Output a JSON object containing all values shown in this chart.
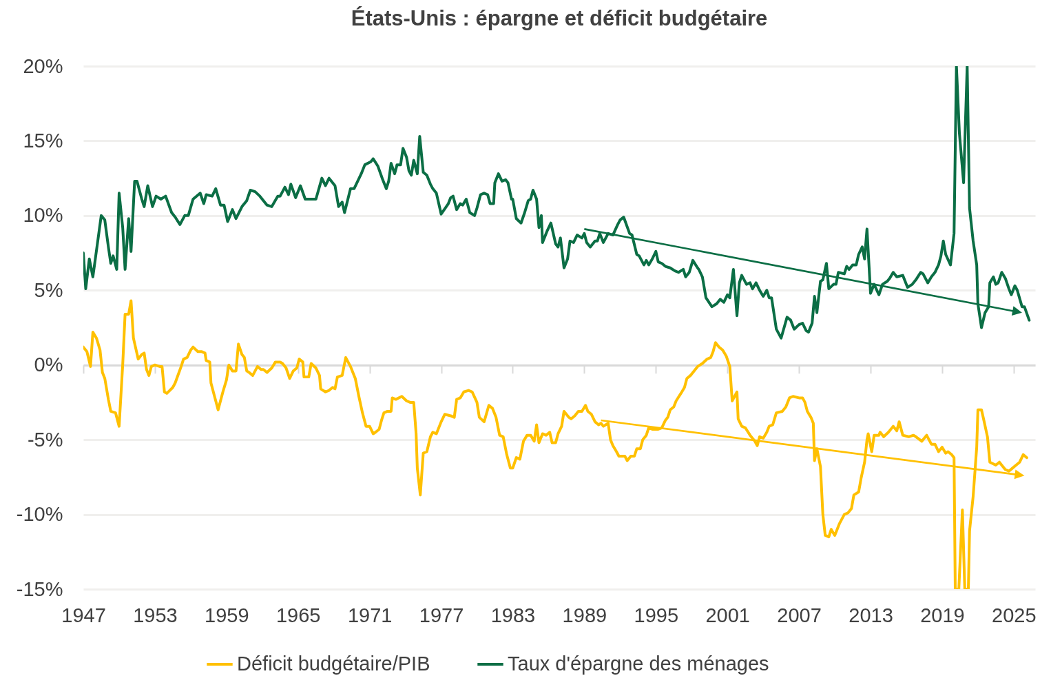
{
  "chart_data": {
    "type": "line",
    "title": "États-Unis : épargne et déficit budgétaire",
    "xlim": [
      1947,
      2026.8
    ],
    "xticks": [
      1947,
      1953,
      1959,
      1965,
      1971,
      1977,
      1983,
      1989,
      1995,
      2001,
      2007,
      2013,
      2019,
      2025
    ],
    "ylim": [
      -15,
      20
    ],
    "yticks": [
      {
        "value": -15,
        "label": "-15%"
      },
      {
        "value": -10,
        "label": "-10%"
      },
      {
        "value": -5,
        "label": "-5%"
      },
      {
        "value": 0,
        "label": "0%"
      },
      {
        "value": 5,
        "label": "5%"
      },
      {
        "value": 10,
        "label": "10%"
      },
      {
        "value": 15,
        "label": "15%"
      },
      {
        "value": 20,
        "label": "20%"
      }
    ],
    "grid": "y",
    "legend": "bottom",
    "series": [
      {
        "name": "Déficit budgétaire/PIB",
        "color": "#ffc000",
        "x": [
          1947.0,
          1947.3,
          1947.6,
          1947.8,
          1948.1,
          1948.4,
          1948.6,
          1948.8,
          1949.1,
          1949.3,
          1949.7,
          1949.8,
          1950.0,
          1950.3,
          1950.5,
          1950.8,
          1951.0,
          1951.2,
          1951.6,
          1951.9,
          1952.1,
          1952.3,
          1952.5,
          1952.7,
          1953.0,
          1953.4,
          1953.6,
          1953.8,
          1954.0,
          1954.5,
          1954.7,
          1955.2,
          1955.4,
          1955.7,
          1956.0,
          1956.2,
          1956.6,
          1956.9,
          1957.2,
          1957.3,
          1957.6,
          1957.7,
          1958.0,
          1958.3,
          1958.7,
          1959.0,
          1959.2,
          1959.5,
          1959.8,
          1960.0,
          1960.3,
          1960.5,
          1960.7,
          1960.9,
          1961.2,
          1961.6,
          1961.9,
          1962.1,
          1962.4,
          1962.8,
          1963.1,
          1963.5,
          1963.7,
          1964.0,
          1964.3,
          1964.6,
          1964.9,
          1965.1,
          1965.4,
          1965.5,
          1965.9,
          1966.1,
          1966.5,
          1966.8,
          1966.9,
          1967.3,
          1967.6,
          1967.9,
          1968.1,
          1968.3,
          1968.7,
          1969.0,
          1969.4,
          1969.8,
          1970.1,
          1970.4,
          1970.7,
          1971.0,
          1971.3,
          1971.5,
          1971.8,
          1972.0,
          1972.2,
          1972.5,
          1972.8,
          1972.9,
          1973.2,
          1973.7,
          1974.1,
          1974.4,
          1974.7,
          1974.9,
          1975.0,
          1975.25,
          1975.5,
          1975.8,
          1976.1,
          1976.3,
          1976.6,
          1977.0,
          1977.3,
          1977.8,
          1978.1,
          1978.3,
          1978.6,
          1978.9,
          1979.3,
          1979.6,
          1980.0,
          1980.2,
          1980.6,
          1981.0,
          1981.3,
          1981.6,
          1981.9,
          1982.2,
          1982.5,
          1982.8,
          1983.0,
          1983.3,
          1983.6,
          1983.9,
          1984.2,
          1984.5,
          1984.8,
          1985.0,
          1985.2,
          1985.5,
          1985.8,
          1986.1,
          1986.3,
          1986.6,
          1986.8,
          1987.1,
          1987.3,
          1987.7,
          1987.9,
          1988.2,
          1988.5,
          1988.8,
          1989.1,
          1989.3,
          1989.6,
          1989.9,
          1990.2,
          1990.4,
          1990.6,
          1991.0,
          1991.2,
          1991.4,
          1991.7,
          1991.9,
          1992.4,
          1992.6,
          1992.9,
          1993.2,
          1993.4,
          1993.7,
          1993.9,
          1994.2,
          1994.4,
          1994.7,
          1995.2,
          1995.5,
          1995.8,
          1996.0,
          1996.2,
          1996.5,
          1996.7,
          1997.1,
          1997.4,
          1997.6,
          1997.9,
          1998.2,
          1998.5,
          1998.9,
          1999.3,
          1999.6,
          1999.8,
          2000.0,
          2000.3,
          2000.6,
          2000.9,
          2001.2,
          2001.4,
          2001.8,
          2001.9,
          2002.2,
          2002.5,
          2002.9,
          2003.3,
          2003.5,
          2003.7,
          2004.0,
          2004.3,
          2004.5,
          2004.8,
          2005.1,
          2005.6,
          2005.9,
          2006.2,
          2006.5,
          2007.0,
          2007.3,
          2007.5,
          2007.7,
          2008.0,
          2008.2,
          2008.3,
          2008.5,
          2008.8,
          2009.0,
          2009.2,
          2009.5,
          2009.7,
          2010.0,
          2010.4,
          2010.8,
          2011.1,
          2011.4,
          2011.6,
          2012.0,
          2012.2,
          2012.5,
          2012.7,
          2012.8,
          2013.1,
          2013.3,
          2013.7,
          2013.8,
          2014.1,
          2014.5,
          2014.9,
          2015.2,
          2015.4,
          2015.7,
          2016.2,
          2016.6,
          2016.8,
          2017.3,
          2017.7,
          2018.1,
          2018.4,
          2018.7,
          2019.0,
          2019.3,
          2019.5,
          2019.8,
          2020.0,
          2020.1,
          2020.4,
          2020.7,
          2020.9,
          2021.2,
          2021.3,
          2021.6,
          2021.9,
          2022.0,
          2022.3,
          2022.5,
          2022.8,
          2023.0,
          2023.5,
          2023.8,
          2024.1,
          2024.3,
          2024.6,
          2024.9,
          2025.2,
          2025.5,
          2025.8,
          2026.1
        ],
        "values": [
          1.2,
          0.9,
          -0.1,
          2.2,
          1.8,
          1.0,
          -0.5,
          -0.9,
          -2.3,
          -3.1,
          -3.2,
          -3.5,
          -4.1,
          0,
          3.4,
          3.4,
          4.3,
          1.8,
          0.4,
          0.7,
          0.8,
          -0.3,
          -0.7,
          -0.1,
          0,
          -0.1,
          -0.1,
          -1.8,
          -1.9,
          -1.5,
          -1.2,
          -0.1,
          0.4,
          0.5,
          1.0,
          1.2,
          0.9,
          0.9,
          0.8,
          0.3,
          0.2,
          -1.2,
          -2.1,
          -3.0,
          -1.8,
          -1.0,
          0,
          -0.4,
          -0.4,
          1.4,
          0.7,
          0.5,
          -0.4,
          -0.5,
          -0.7,
          -0.1,
          -0.3,
          -0.3,
          -0.5,
          -0.2,
          0.2,
          0.2,
          0.1,
          -0.2,
          -0.9,
          -0.4,
          -0.2,
          0.4,
          0.2,
          -0.8,
          -0.8,
          0.1,
          -0.2,
          -0.7,
          -1.6,
          -1.8,
          -1.7,
          -1.5,
          -1.6,
          -0.8,
          -0.7,
          0.5,
          -0.1,
          -0.9,
          -2.1,
          -3.2,
          -4.1,
          -4.1,
          -4.6,
          -4.5,
          -4.3,
          -3.7,
          -3.2,
          -3.1,
          -3.1,
          -2.2,
          -2.3,
          -2.1,
          -2.4,
          -2.5,
          -2.5,
          -4.6,
          -6.9,
          -8.7,
          -5.9,
          -5.8,
          -4.8,
          -4.5,
          -4.6,
          -3.8,
          -3.3,
          -3.4,
          -3.5,
          -2.3,
          -2.2,
          -1.8,
          -1.7,
          -1.8,
          -2.5,
          -3.5,
          -3.8,
          -2.7,
          -2.9,
          -3.5,
          -4.7,
          -4.8,
          -6.0,
          -6.9,
          -6.9,
          -6.2,
          -6.3,
          -5.1,
          -4.7,
          -4.7,
          -5.1,
          -4.0,
          -5.2,
          -4.6,
          -4.7,
          -4.5,
          -5.2,
          -5.2,
          -4.6,
          -4.1,
          -3.1,
          -3.5,
          -3.6,
          -3.4,
          -3.1,
          -3.1,
          -2.7,
          -3.1,
          -3.3,
          -3.8,
          -4.0,
          -3.9,
          -4.1,
          -3.9,
          -5.0,
          -5.4,
          -5.8,
          -6.1,
          -6.1,
          -6.4,
          -6.1,
          -6.1,
          -5.6,
          -5.6,
          -5.0,
          -4.7,
          -4.2,
          -4.3,
          -4.3,
          -4.2,
          -3.7,
          -3.5,
          -3.0,
          -2.8,
          -2.4,
          -1.9,
          -1.5,
          -0.9,
          -0.7,
          -0.4,
          -0.1,
          0.1,
          0.4,
          0.5,
          0.9,
          1.5,
          1.2,
          1.0,
          0.6,
          -0.1,
          -2.4,
          -1.8,
          -3.6,
          -4.1,
          -4.2,
          -4.7,
          -5.1,
          -5.4,
          -4.8,
          -4.9,
          -4.5,
          -4.1,
          -4.0,
          -3.2,
          -3.1,
          -2.8,
          -2.2,
          -2.1,
          -2.2,
          -2.2,
          -2.5,
          -3.1,
          -3.5,
          -3.9,
          -6.4,
          -5.6,
          -6.8,
          -10.0,
          -11.4,
          -11.5,
          -11.0,
          -11.4,
          -10.6,
          -10.0,
          -9.9,
          -9.6,
          -8.7,
          -8.5,
          -7.6,
          -6.5,
          -5.0,
          -4.6,
          -5.8,
          -4.7,
          -4.7,
          -4.5,
          -4.8,
          -4.5,
          -4.1,
          -4.4,
          -3.8,
          -4.7,
          -4.8,
          -4.7,
          -4.8,
          -5.1,
          -4.7,
          -5.3,
          -5.3,
          -5.8,
          -5.5,
          -5.9,
          -5.8,
          -6.0,
          -6.2,
          -15,
          -15,
          -9.7,
          -15,
          -15,
          -11.1,
          -8.8,
          -5.5,
          -3.0,
          -3.0,
          -3.7,
          -4.8,
          -6.5,
          -6.7,
          -6.5,
          -6.8,
          -7.0,
          -7.1,
          -6.9,
          -6.7,
          -6.5,
          -6.0,
          -6.2
        ]
      },
      {
        "name": "Taux d'épargne des ménages",
        "color": "#0b6e45",
        "x": [
          1947.0,
          1947.2,
          1947.5,
          1947.8,
          1948.5,
          1948.8,
          1949.1,
          1949.3,
          1949.5,
          1949.8,
          1950.0,
          1950.3,
          1950.5,
          1950.8,
          1951.0,
          1951.3,
          1951.5,
          1951.9,
          1952.1,
          1952.4,
          1952.8,
          1953.1,
          1953.5,
          1953.9,
          1954.4,
          1954.7,
          1955.1,
          1955.5,
          1955.8,
          1956.2,
          1956.8,
          1957.1,
          1957.3,
          1957.8,
          1958.1,
          1958.5,
          1958.8,
          1959.1,
          1959.5,
          1959.8,
          1960.3,
          1960.7,
          1961.0,
          1961.4,
          1961.8,
          1962.4,
          1962.8,
          1963.3,
          1963.5,
          1963.9,
          1964.2,
          1964.4,
          1964.8,
          1965.2,
          1965.6,
          1966.5,
          1967.0,
          1967.3,
          1967.6,
          1968.1,
          1968.4,
          1968.7,
          1968.9,
          1969.4,
          1969.7,
          1970.3,
          1970.6,
          1971.1,
          1971.3,
          1971.7,
          1972.1,
          1972.4,
          1972.6,
          1972.8,
          1973.1,
          1973.3,
          1973.6,
          1973.8,
          1974.1,
          1974.3,
          1974.5,
          1974.7,
          1975.0,
          1975.2,
          1975.5,
          1975.8,
          1976.1,
          1976.3,
          1976.6,
          1977.0,
          1977.6,
          1977.8,
          1978.0,
          1978.3,
          1978.6,
          1978.8,
          1979.1,
          1979.4,
          1979.8,
          1980.0,
          1980.3,
          1980.6,
          1980.9,
          1981.1,
          1981.4,
          1981.5,
          1981.8,
          1982.1,
          1982.4,
          1982.6,
          1982.9,
          1983.0,
          1983.3,
          1983.7,
          1984.0,
          1984.3,
          1984.5,
          1984.7,
          1985.0,
          1985.2,
          1985.4,
          1985.5,
          1985.9,
          1986.2,
          1986.6,
          1986.8,
          1987.0,
          1987.3,
          1987.6,
          1987.8,
          1988.1,
          1988.4,
          1988.8,
          1989.0,
          1989.2,
          1989.5,
          1989.9,
          1990.1,
          1990.3,
          1990.6,
          1991.0,
          1991.4,
          1991.8,
          1992.0,
          1992.3,
          1992.8,
          1993.0,
          1993.4,
          1993.6,
          1994.0,
          1994.2,
          1994.4,
          1994.7,
          1995.0,
          1995.2,
          1995.5,
          1995.8,
          1996.2,
          1996.6,
          1996.9,
          1997.3,
          1997.5,
          1997.8,
          1998.1,
          1998.5,
          1998.6,
          1998.9,
          1999.2,
          1999.7,
          2000.1,
          2000.4,
          2000.7,
          2001.0,
          2001.2,
          2001.5,
          2001.8,
          2002.0,
          2002.2,
          2002.6,
          2002.9,
          2003.1,
          2003.4,
          2003.7,
          2004.0,
          2004.3,
          2004.5,
          2004.7,
          2005.1,
          2005.5,
          2006.0,
          2006.3,
          2006.6,
          2007.0,
          2007.3,
          2007.6,
          2007.8,
          2008.1,
          2008.3,
          2008.5,
          2008.8,
          2009.0,
          2009.3,
          2009.5,
          2009.9,
          2010.1,
          2010.3,
          2010.8,
          2011.0,
          2011.2,
          2011.5,
          2011.8,
          2012.0,
          2012.3,
          2012.5,
          2012.7,
          2013.0,
          2013.3,
          2013.7,
          2014.0,
          2014.4,
          2014.6,
          2014.9,
          2015.2,
          2015.7,
          2016.1,
          2016.5,
          2016.8,
          2017.2,
          2017.4,
          2017.8,
          2018.1,
          2018.4,
          2018.7,
          2018.9,
          2019.1,
          2019.3,
          2019.7,
          2020.0,
          2020.2,
          2020.45,
          2020.8,
          2021.1,
          2021.3,
          2021.6,
          2021.9,
          2022.0,
          2022.3,
          2022.6,
          2022.9,
          2023.0,
          2023.3,
          2023.5,
          2023.7,
          2024.0,
          2024.3,
          2024.6,
          2024.8,
          2025.1,
          2025.3,
          2025.7,
          2025.9,
          2026.3
        ],
        "values": [
          7.5,
          5.1,
          7.1,
          5.9,
          10.0,
          9.7,
          7.9,
          6.8,
          7.3,
          6.4,
          11.5,
          9.2,
          6.4,
          9.8,
          7.6,
          12.3,
          12.3,
          11.1,
          10.6,
          12.0,
          10.6,
          11.3,
          11.1,
          11.3,
          10.2,
          9.9,
          9.4,
          10.0,
          10.0,
          11.1,
          11.5,
          10.8,
          11.4,
          11.3,
          11.8,
          10.7,
          10.7,
          9.6,
          10.4,
          9.8,
          10.6,
          11.0,
          11.7,
          11.6,
          11.3,
          10.7,
          10.6,
          11.3,
          11.3,
          11.9,
          11.4,
          12.1,
          11.2,
          12.0,
          11.1,
          11.1,
          12.5,
          12.0,
          12.5,
          12.0,
          10.6,
          10.9,
          10.2,
          11.8,
          11.8,
          12.8,
          13.4,
          13.6,
          13.8,
          13.3,
          12.4,
          11.8,
          12.3,
          13.5,
          12.8,
          13.4,
          13.4,
          14.5,
          13.9,
          13.0,
          12.7,
          13.7,
          12.8,
          15.3,
          12.9,
          12.7,
          12.1,
          11.8,
          11.5,
          10.1,
          10.8,
          11.2,
          11.3,
          10.4,
          10.8,
          10.7,
          11.1,
          10.2,
          10.0,
          10.5,
          11.4,
          11.5,
          11.4,
          10.8,
          10.8,
          12.2,
          12.8,
          12.3,
          12.4,
          12.2,
          11.1,
          11.1,
          9.8,
          9.5,
          10.2,
          11.0,
          11.1,
          11.7,
          11.1,
          9.2,
          10.0,
          8.2,
          9.0,
          9.5,
          8.1,
          7.9,
          8.5,
          6.5,
          7.1,
          8.3,
          8.2,
          8.7,
          8.5,
          8.8,
          8.2,
          7.9,
          8.3,
          8.3,
          8.8,
          8.2,
          8.8,
          8.7,
          9.4,
          9.7,
          9.9,
          8.8,
          8.7,
          7.4,
          7.3,
          6.7,
          7.0,
          6.7,
          7.1,
          7.6,
          6.9,
          6.8,
          6.6,
          6.5,
          6.3,
          6.2,
          6.4,
          5.9,
          6.2,
          7.0,
          6.5,
          6.4,
          5.9,
          4.5,
          3.9,
          4.1,
          4.4,
          4.2,
          4.7,
          4.5,
          6.4,
          3.3,
          5.5,
          6.0,
          5.4,
          5.5,
          5.1,
          5.5,
          5.0,
          4.6,
          5.0,
          4.5,
          4.5,
          2.4,
          1.8,
          3.2,
          3.0,
          2.4,
          2.7,
          2.8,
          2.3,
          2.2,
          2.8,
          4.6,
          3.5,
          5.6,
          5.7,
          6.8,
          5.1,
          5.4,
          5.4,
          6.2,
          6.1,
          6.6,
          6.4,
          6.7,
          6.7,
          7.4,
          7.9,
          7.1,
          9.1,
          4.8,
          5.4,
          4.7,
          5.4,
          5.6,
          5.8,
          6.2,
          5.9,
          6.0,
          5.2,
          5.4,
          5.7,
          6.2,
          6.1,
          5.5,
          5.9,
          6.2,
          6.7,
          7.3,
          8.3,
          7.4,
          6.7,
          8.8,
          20,
          15.5,
          12.2,
          20,
          10.5,
          8.3,
          6.7,
          4.1,
          2.5,
          3.5,
          3.9,
          5.5,
          5.9,
          5.4,
          5.5,
          6.2,
          5.8,
          5.1,
          4.7,
          5.3,
          5.0,
          3.9,
          3.9,
          3.0
        ]
      }
    ]
  }
}
